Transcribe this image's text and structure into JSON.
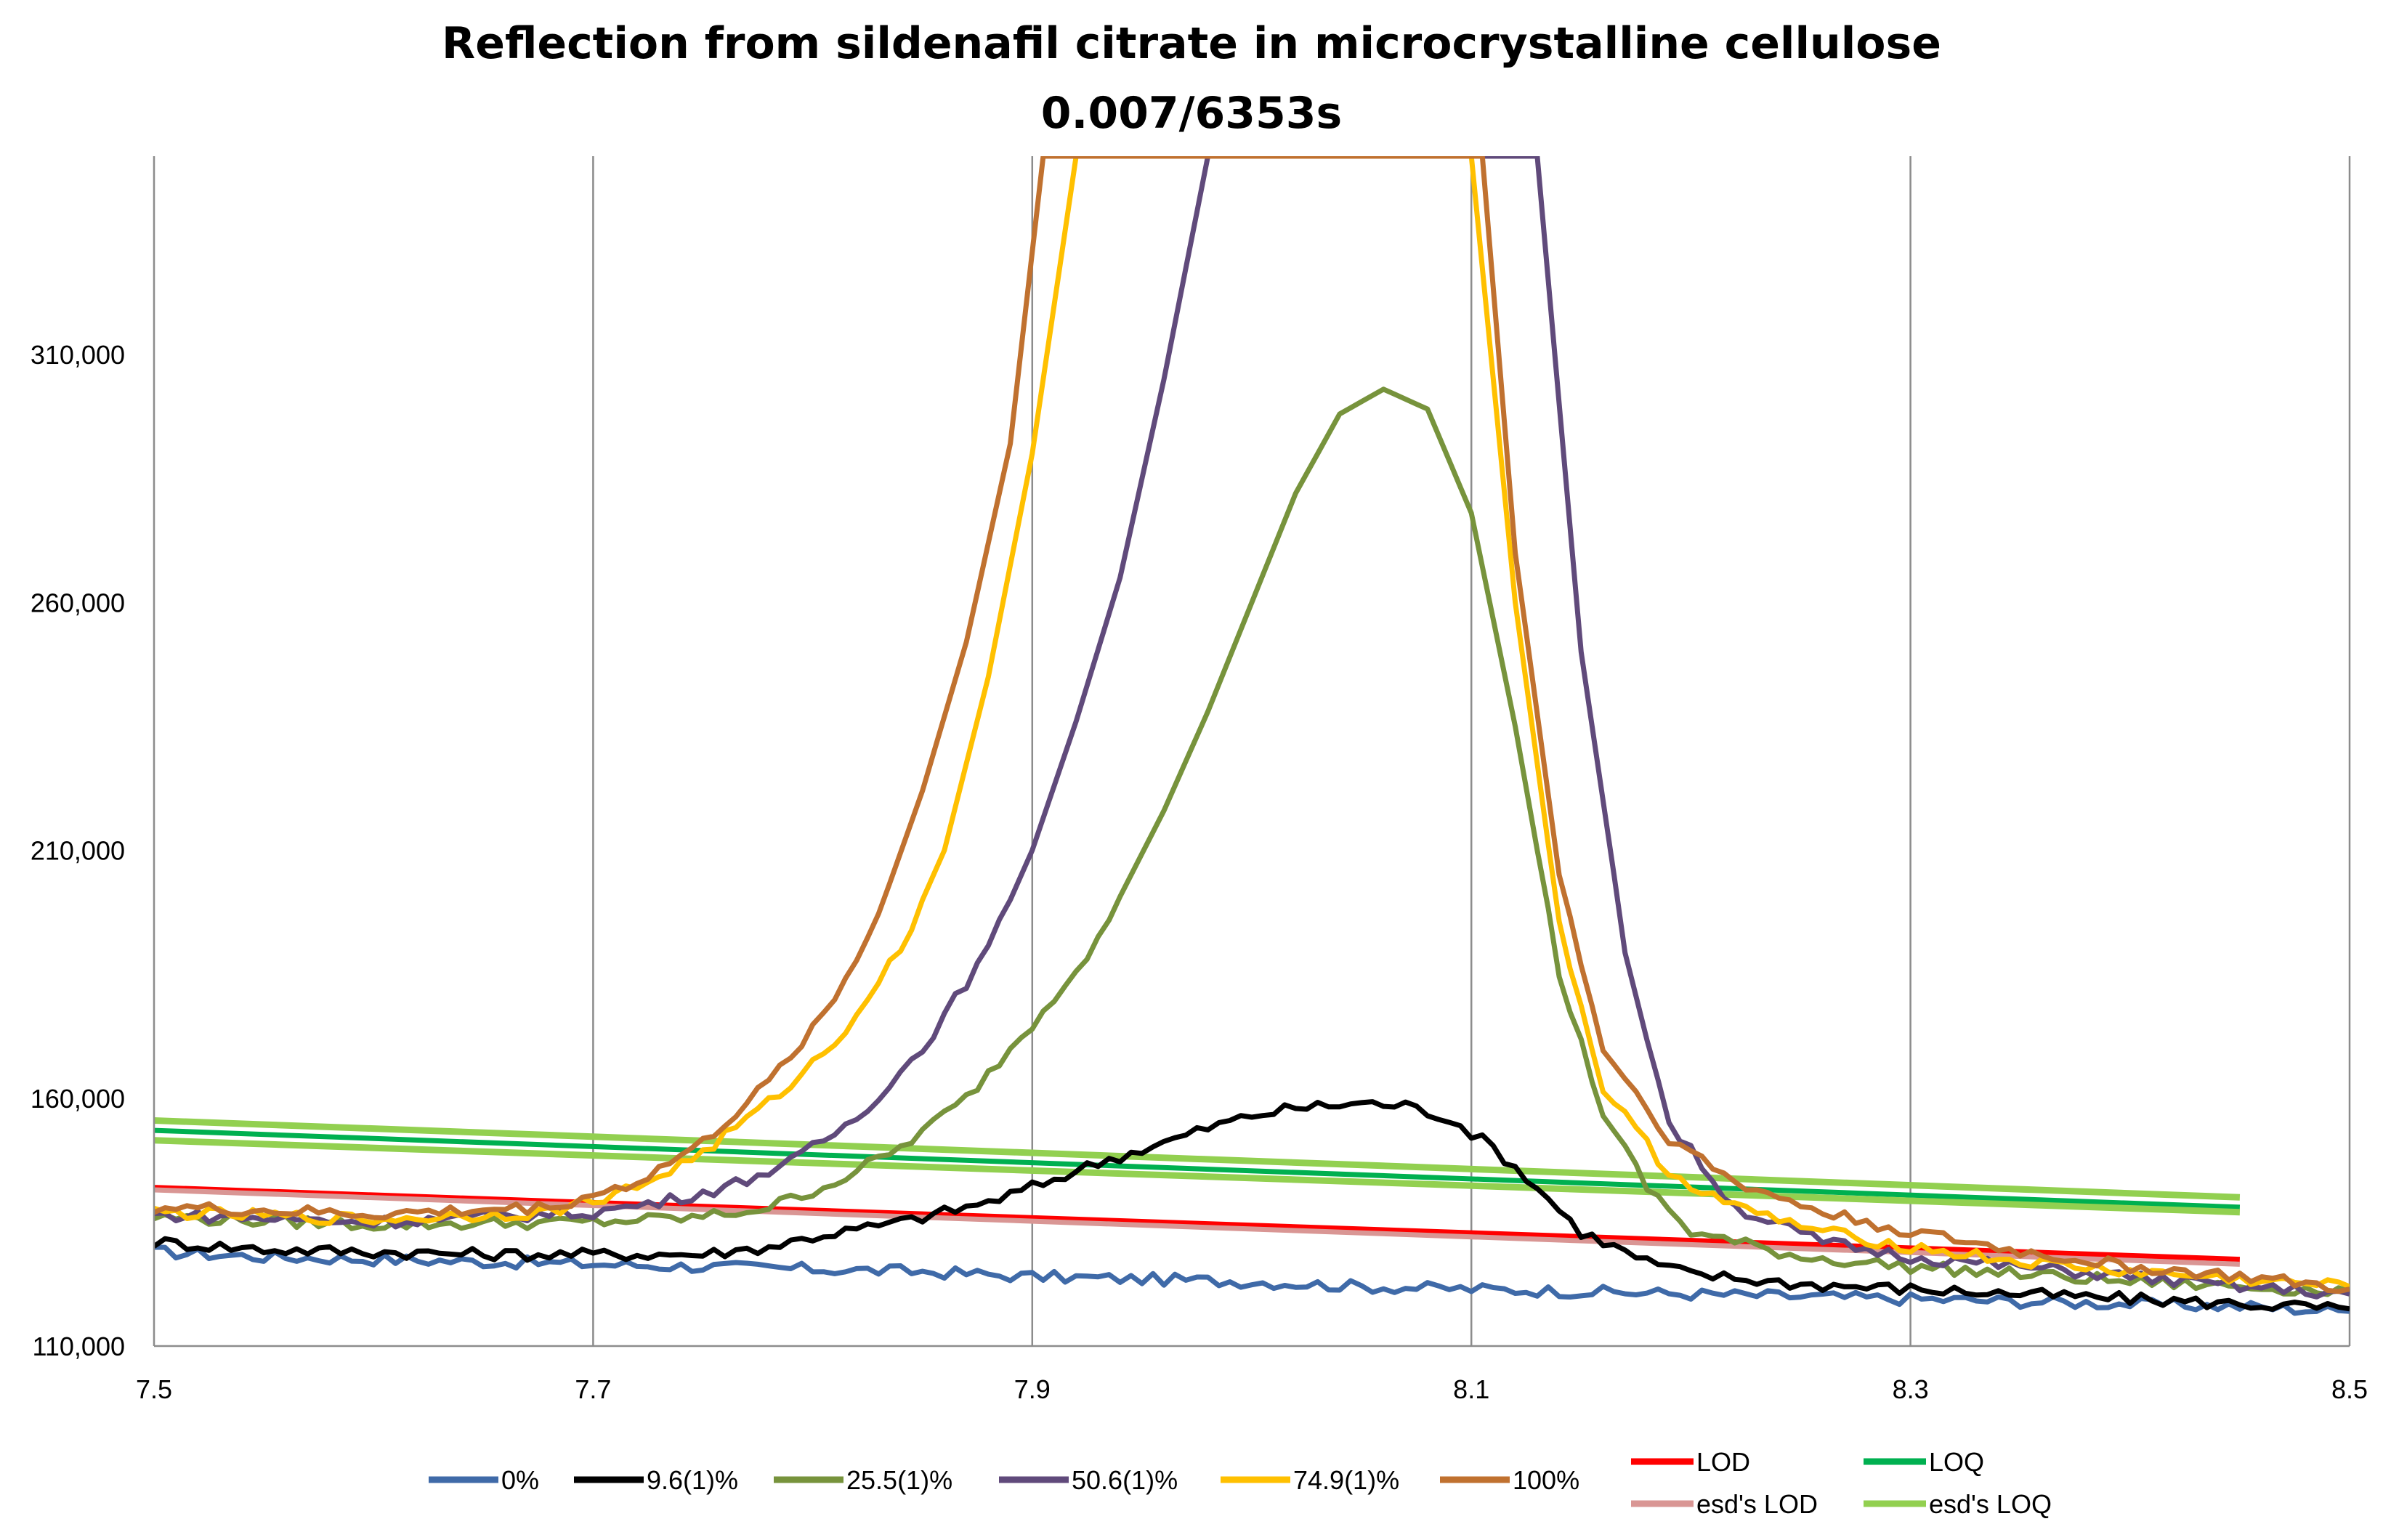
{
  "chart_data": {
    "type": "line",
    "title": "Reflection from sildenafil citrate in microcrystalline cellulose",
    "subtitle": "0.007/6353s",
    "xlabel": "",
    "ylabel": "",
    "xlim": [
      7.5,
      8.5
    ],
    "ylim": [
      110000,
      350000
    ],
    "x_ticks": [
      7.5,
      7.7,
      7.9,
      8.1,
      8.3,
      8.5
    ],
    "x_tick_labels": [
      "7.5",
      "7.7",
      "7.9",
      "8.1",
      "8.3",
      "8.5"
    ],
    "y_ticks": [
      110000,
      160000,
      210000,
      260000,
      310000
    ],
    "y_tick_labels": [
      "110,000",
      "160,000",
      "210,000",
      "260,000",
      "310,000"
    ],
    "grid": "vertical",
    "legend_position": "bottom",
    "series": [
      {
        "name": "0%",
        "color": "#3F6AA8",
        "role": "data",
        "points": [
          [
            7.5,
            129000
          ],
          [
            7.55,
            128000
          ],
          [
            7.6,
            127500
          ],
          [
            7.65,
            127000
          ],
          [
            7.7,
            126500
          ],
          [
            7.75,
            126000
          ],
          [
            7.8,
            125500
          ],
          [
            7.85,
            125000
          ],
          [
            7.9,
            124000
          ],
          [
            7.95,
            123500
          ],
          [
            8.0,
            123000
          ],
          [
            8.05,
            122000
          ],
          [
            8.1,
            121500
          ],
          [
            8.15,
            121000
          ],
          [
            8.2,
            120500
          ],
          [
            8.25,
            120000
          ],
          [
            8.3,
            119500
          ],
          [
            8.35,
            119000
          ],
          [
            8.4,
            118500
          ],
          [
            8.45,
            118000
          ],
          [
            8.5,
            117000
          ]
        ]
      },
      {
        "name": "9.6(1)%",
        "color": "#000000",
        "role": "data",
        "points": [
          [
            7.5,
            131000
          ],
          [
            7.55,
            129500
          ],
          [
            7.6,
            129000
          ],
          [
            7.65,
            128500
          ],
          [
            7.7,
            128500
          ],
          [
            7.75,
            128500
          ],
          [
            7.78,
            130000
          ],
          [
            7.8,
            132000
          ],
          [
            7.84,
            135000
          ],
          [
            7.88,
            139000
          ],
          [
            7.9,
            142000
          ],
          [
            7.93,
            147000
          ],
          [
            7.96,
            151000
          ],
          [
            7.98,
            154000
          ],
          [
            8.0,
            156500
          ],
          [
            8.02,
            158000
          ],
          [
            8.05,
            159000
          ],
          [
            8.07,
            158500
          ],
          [
            8.09,
            156000
          ],
          [
            8.11,
            150000
          ],
          [
            8.13,
            142000
          ],
          [
            8.15,
            133000
          ],
          [
            8.18,
            127000
          ],
          [
            8.2,
            124500
          ],
          [
            8.25,
            122500
          ],
          [
            8.3,
            121500
          ],
          [
            8.35,
            120500
          ],
          [
            8.4,
            119500
          ],
          [
            8.45,
            118500
          ],
          [
            8.5,
            117500
          ]
        ]
      },
      {
        "name": "25.5(1)%",
        "color": "#77933C",
        "role": "data",
        "points": [
          [
            7.5,
            136000
          ],
          [
            7.6,
            134500
          ],
          [
            7.7,
            135000
          ],
          [
            7.75,
            136000
          ],
          [
            7.78,
            138000
          ],
          [
            7.81,
            143000
          ],
          [
            7.84,
            150000
          ],
          [
            7.87,
            160000
          ],
          [
            7.9,
            175000
          ],
          [
            7.93,
            192000
          ],
          [
            7.96,
            218000
          ],
          [
            7.98,
            238000
          ],
          [
            8.0,
            260000
          ],
          [
            8.02,
            282000
          ],
          [
            8.04,
            298000
          ],
          [
            8.06,
            303000
          ],
          [
            8.08,
            299000
          ],
          [
            8.1,
            278000
          ],
          [
            8.12,
            235000
          ],
          [
            8.14,
            185000
          ],
          [
            8.16,
            157000
          ],
          [
            8.18,
            142000
          ],
          [
            8.2,
            133000
          ],
          [
            8.25,
            128000
          ],
          [
            8.3,
            126000
          ],
          [
            8.4,
            123000
          ],
          [
            8.5,
            121000
          ]
        ]
      },
      {
        "name": "50.6(1)%",
        "color": "#604A7B",
        "role": "data",
        "points": [
          [
            7.5,
            136500
          ],
          [
            7.6,
            135000
          ],
          [
            7.7,
            137000
          ],
          [
            7.73,
            139000
          ],
          [
            7.76,
            142000
          ],
          [
            7.79,
            147000
          ],
          [
            7.82,
            156000
          ],
          [
            7.85,
            170000
          ],
          [
            7.88,
            190000
          ],
          [
            7.9,
            210000
          ],
          [
            7.92,
            236000
          ],
          [
            7.94,
            265000
          ],
          [
            7.96,
            305000
          ],
          [
            7.98,
            350000
          ],
          [
            8.13,
            350000
          ],
          [
            8.15,
            250000
          ],
          [
            8.17,
            190000
          ],
          [
            8.19,
            155000
          ],
          [
            8.22,
            138000
          ],
          [
            8.26,
            131000
          ],
          [
            8.3,
            128000
          ],
          [
            8.35,
            126000
          ],
          [
            8.4,
            124000
          ],
          [
            8.45,
            122000
          ],
          [
            8.5,
            120500
          ]
        ]
      },
      {
        "name": "74.9(1)%",
        "color": "#FFC000",
        "role": "data",
        "points": [
          [
            7.5,
            137000
          ],
          [
            7.6,
            135500
          ],
          [
            7.68,
            137000
          ],
          [
            7.72,
            142000
          ],
          [
            7.75,
            149000
          ],
          [
            7.78,
            159000
          ],
          [
            7.81,
            171000
          ],
          [
            7.84,
            190000
          ],
          [
            7.86,
            210000
          ],
          [
            7.88,
            245000
          ],
          [
            7.9,
            290000
          ],
          [
            7.92,
            350000
          ],
          [
            8.1,
            350000
          ],
          [
            8.12,
            260000
          ],
          [
            8.14,
            195000
          ],
          [
            8.16,
            162000
          ],
          [
            8.19,
            145000
          ],
          [
            8.22,
            138000
          ],
          [
            8.26,
            133000
          ],
          [
            8.3,
            130000
          ],
          [
            8.35,
            127000
          ],
          [
            8.4,
            125000
          ],
          [
            8.45,
            123500
          ],
          [
            8.5,
            122000
          ]
        ]
      },
      {
        "name": "100%",
        "color": "#C0712F",
        "role": "data",
        "points": [
          [
            7.5,
            138000
          ],
          [
            7.6,
            136500
          ],
          [
            7.68,
            138000
          ],
          [
            7.72,
            143000
          ],
          [
            7.75,
            151000
          ],
          [
            7.78,
            163000
          ],
          [
            7.81,
            180000
          ],
          [
            7.83,
            197000
          ],
          [
            7.85,
            222000
          ],
          [
            7.87,
            252000
          ],
          [
            7.89,
            292000
          ],
          [
            7.905,
            350000
          ],
          [
            8.105,
            350000
          ],
          [
            8.12,
            270000
          ],
          [
            8.14,
            205000
          ],
          [
            8.16,
            170000
          ],
          [
            8.19,
            152000
          ],
          [
            8.22,
            143000
          ],
          [
            8.26,
            137000
          ],
          [
            8.3,
            133000
          ],
          [
            8.35,
            129000
          ],
          [
            8.4,
            126000
          ],
          [
            8.45,
            124000
          ],
          [
            8.5,
            121500
          ]
        ]
      },
      {
        "name": "LOD",
        "color": "#FF0000",
        "role": "limit",
        "points": [
          [
            7.5,
            142000
          ],
          [
            8.45,
            127500
          ]
        ]
      },
      {
        "name": "esd's LOD",
        "color": "#D99694",
        "role": "limit",
        "points": [
          [
            7.5,
            141500
          ],
          [
            8.45,
            126500
          ]
        ]
      },
      {
        "name": "LOQ",
        "color": "#00B050",
        "role": "limit",
        "points": [
          [
            7.5,
            153500
          ],
          [
            8.45,
            138000
          ]
        ]
      },
      {
        "name": "esd's LOQ",
        "color": "#92D050",
        "role": "limit",
        "band": [
          [
            [
              7.5,
              155500
            ],
            [
              8.45,
              140000
            ]
          ],
          [
            [
              7.5,
              151500
            ],
            [
              8.45,
              137000
            ]
          ]
        ]
      }
    ]
  }
}
